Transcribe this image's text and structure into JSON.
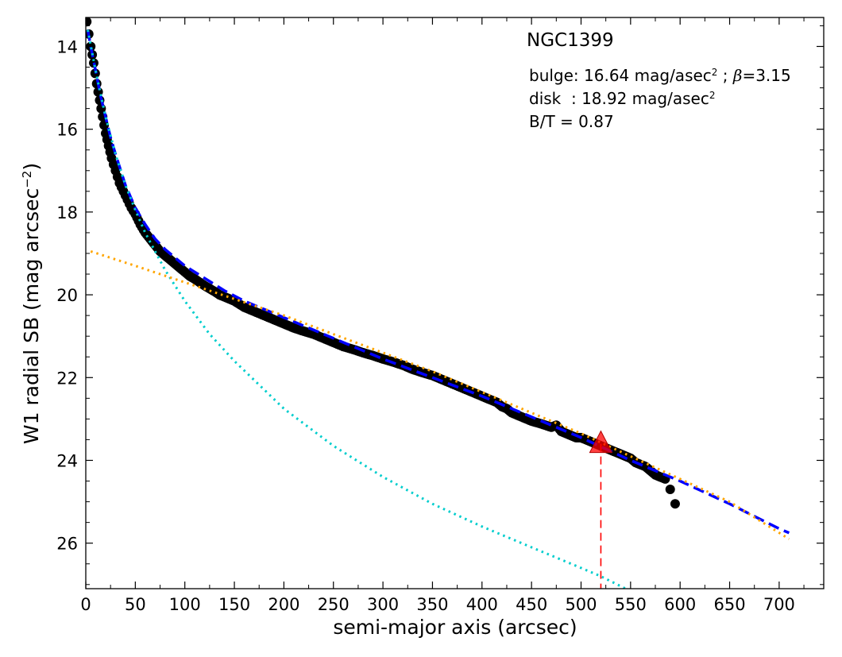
{
  "chart_data": {
    "type": "scatter",
    "title": "NGC1399",
    "xlabel": "semi-major axis (arcsec)",
    "ylabel_main": "W1 radial SB (mag arcsec",
    "ylabel_sup": "−2",
    "ylabel_close": ")",
    "xlim": [
      0,
      745
    ],
    "ylim": [
      27.1,
      13.3
    ],
    "y_inverted": true,
    "grid": false,
    "x_ticks": [
      0,
      50,
      100,
      150,
      200,
      250,
      300,
      350,
      400,
      450,
      500,
      550,
      600,
      650,
      700
    ],
    "y_ticks": [
      14,
      16,
      18,
      20,
      22,
      24,
      26
    ],
    "annotations": {
      "bulge_prefix": "bulge: 16.64 mag/asec",
      "bulge_sup": "2",
      "bulge_sep": " ; ",
      "bulge_beta": "β",
      "bulge_beta_val": "=3.15",
      "disk_prefix": "disk  : 18.92 mag/asec",
      "disk_sup": "2",
      "bt": "B/T = 0.87"
    },
    "series": [
      {
        "role": "observed profile",
        "marker": "filled circle",
        "color": "#000000",
        "x": [
          1,
          3,
          5,
          8,
          11,
          14,
          17,
          20,
          23,
          26,
          30,
          34,
          38,
          42,
          46,
          50,
          55,
          60,
          65,
          70,
          75,
          80,
          85,
          90,
          95,
          100,
          105,
          110,
          115,
          120,
          125,
          130,
          135,
          140,
          145,
          150,
          160,
          170,
          180,
          190,
          200,
          210,
          220,
          230,
          240,
          250,
          260,
          270,
          280,
          290,
          300,
          310,
          320,
          330,
          340,
          350,
          360,
          370,
          380,
          390,
          400,
          405,
          410,
          415,
          420,
          425,
          430,
          440,
          450,
          460,
          470,
          475,
          480,
          485,
          490,
          495,
          500,
          505,
          510,
          515,
          520,
          525,
          530,
          535,
          540,
          545,
          550,
          555,
          560,
          565,
          570,
          575,
          580,
          585,
          590,
          595
        ],
        "y": [
          13.4,
          13.7,
          14.0,
          14.4,
          14.9,
          15.3,
          15.7,
          16.1,
          16.4,
          16.7,
          17.0,
          17.3,
          17.5,
          17.7,
          17.9,
          18.05,
          18.3,
          18.5,
          18.65,
          18.8,
          18.95,
          19.05,
          19.15,
          19.25,
          19.35,
          19.45,
          19.55,
          19.62,
          19.7,
          19.78,
          19.85,
          19.92,
          20.0,
          20.05,
          20.1,
          20.15,
          20.3,
          20.4,
          20.5,
          20.6,
          20.7,
          20.8,
          20.88,
          20.95,
          21.05,
          21.15,
          21.25,
          21.32,
          21.4,
          21.47,
          21.55,
          21.62,
          21.7,
          21.8,
          21.88,
          21.95,
          22.05,
          22.15,
          22.25,
          22.35,
          22.45,
          22.5,
          22.55,
          22.6,
          22.7,
          22.75,
          22.85,
          22.95,
          23.05,
          23.12,
          23.2,
          23.15,
          23.3,
          23.35,
          23.4,
          23.45,
          23.45,
          23.5,
          23.55,
          23.6,
          23.65,
          23.7,
          23.75,
          23.8,
          23.85,
          23.9,
          23.95,
          24.05,
          24.1,
          24.15,
          24.25,
          24.35,
          24.4,
          24.45,
          24.7,
          25.05
        ]
      },
      {
        "role": "total fit",
        "style": "dashed",
        "color": "#0000ff",
        "x": [
          2,
          5,
          10,
          15,
          20,
          25,
          30,
          40,
          50,
          60,
          70,
          80,
          90,
          100,
          120,
          140,
          160,
          180,
          200,
          250,
          300,
          350,
          400,
          450,
          500,
          550,
          600,
          650,
          700,
          710
        ],
        "y": [
          13.6,
          14.0,
          14.6,
          15.2,
          15.7,
          16.2,
          16.6,
          17.35,
          17.9,
          18.3,
          18.65,
          18.9,
          19.1,
          19.3,
          19.6,
          19.9,
          20.15,
          20.35,
          20.55,
          21.05,
          21.55,
          22.0,
          22.45,
          22.95,
          23.45,
          24.0,
          24.5,
          25.05,
          25.65,
          25.75
        ]
      },
      {
        "role": "bulge component",
        "style": "dotted",
        "color": "#00cdcd",
        "x": [
          2,
          10,
          20,
          30,
          40,
          50,
          60,
          80,
          100,
          125,
          150,
          200,
          250,
          300,
          350,
          400,
          450,
          500,
          520,
          545
        ],
        "y": [
          13.6,
          14.6,
          15.7,
          16.6,
          17.35,
          17.95,
          18.5,
          19.4,
          20.15,
          20.95,
          21.6,
          22.75,
          23.65,
          24.4,
          25.05,
          25.6,
          26.1,
          26.6,
          26.8,
          27.1
        ]
      },
      {
        "role": "disk component",
        "style": "dotted",
        "color": "#ffa500",
        "x": [
          5,
          50,
          100,
          150,
          200,
          250,
          300,
          350,
          400,
          450,
          500,
          550,
          600,
          650,
          710
        ],
        "y": [
          18.95,
          19.3,
          19.7,
          20.1,
          20.5,
          20.95,
          21.4,
          21.85,
          22.35,
          22.85,
          23.35,
          23.9,
          24.45,
          25.0,
          25.9
        ]
      }
    ],
    "marker_triangle": {
      "x": 520,
      "y": 23.6,
      "color": "#ff0000"
    },
    "vline": {
      "x": 520,
      "color": "#ff0000",
      "style": "dashed"
    }
  }
}
